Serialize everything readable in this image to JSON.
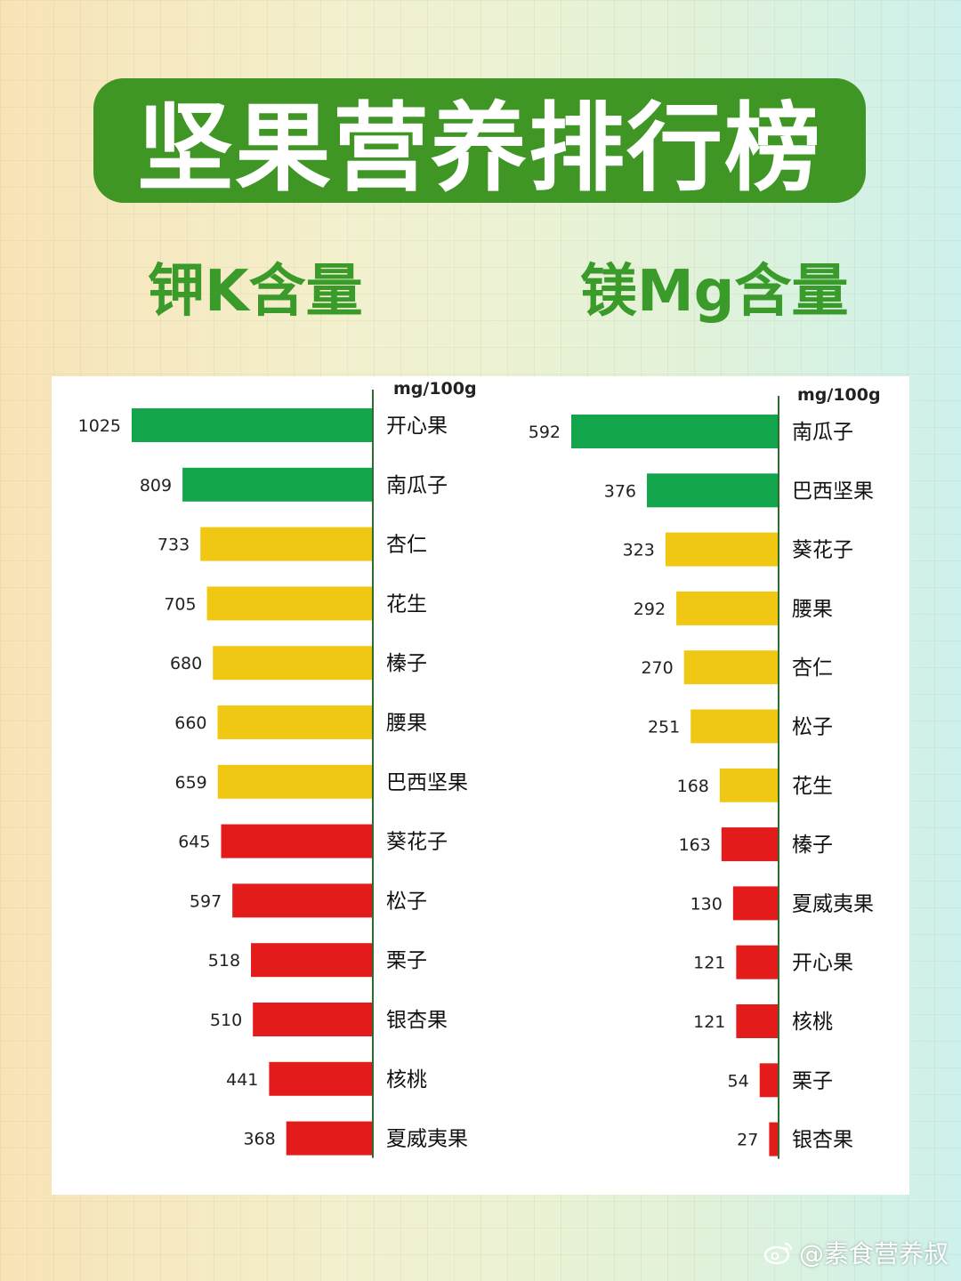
{
  "title": "坚果营养排行榜",
  "subtitles": {
    "potassium": "钾K含量",
    "magnesium": "镁Mg含量"
  },
  "watermark": "@素食营养叔",
  "colors": {
    "banner": "#3f9625",
    "subtitle": "#3a9a2a",
    "green": "#12a54b",
    "yellow": "#f0c814",
    "red": "#e41b1b",
    "axis": "#2f6b2f"
  },
  "chart_data": [
    {
      "type": "bar",
      "orientation": "horizontal",
      "unit": "mg/100g",
      "categories": [
        "开心果",
        "南瓜子",
        "杏仁",
        "花生",
        "榛子",
        "腰果",
        "巴西坚果",
        "葵花子",
        "松子",
        "栗子",
        "银杏果",
        "核桃",
        "夏威夷果"
      ],
      "values": [
        1025,
        809,
        733,
        705,
        680,
        660,
        659,
        645,
        597,
        518,
        510,
        441,
        368
      ],
      "bar_colors": [
        "green",
        "green",
        "yellow",
        "yellow",
        "yellow",
        "yellow",
        "yellow",
        "red",
        "red",
        "red",
        "red",
        "red",
        "red"
      ],
      "xlim": [
        0,
        1025
      ]
    },
    {
      "type": "bar",
      "orientation": "horizontal",
      "unit": "mg/100g",
      "categories": [
        "南瓜子",
        "巴西坚果",
        "葵花子",
        "腰果",
        "杏仁",
        "松子",
        "花生",
        "榛子",
        "夏威夷果",
        "开心果",
        "核桃",
        "栗子",
        "银杏果"
      ],
      "values": [
        592,
        376,
        323,
        292,
        270,
        251,
        168,
        163,
        130,
        121,
        121,
        54,
        27
      ],
      "bar_colors": [
        "green",
        "green",
        "yellow",
        "yellow",
        "yellow",
        "yellow",
        "yellow",
        "red",
        "red",
        "red",
        "red",
        "red",
        "red"
      ],
      "xlim": [
        0,
        592
      ]
    }
  ]
}
